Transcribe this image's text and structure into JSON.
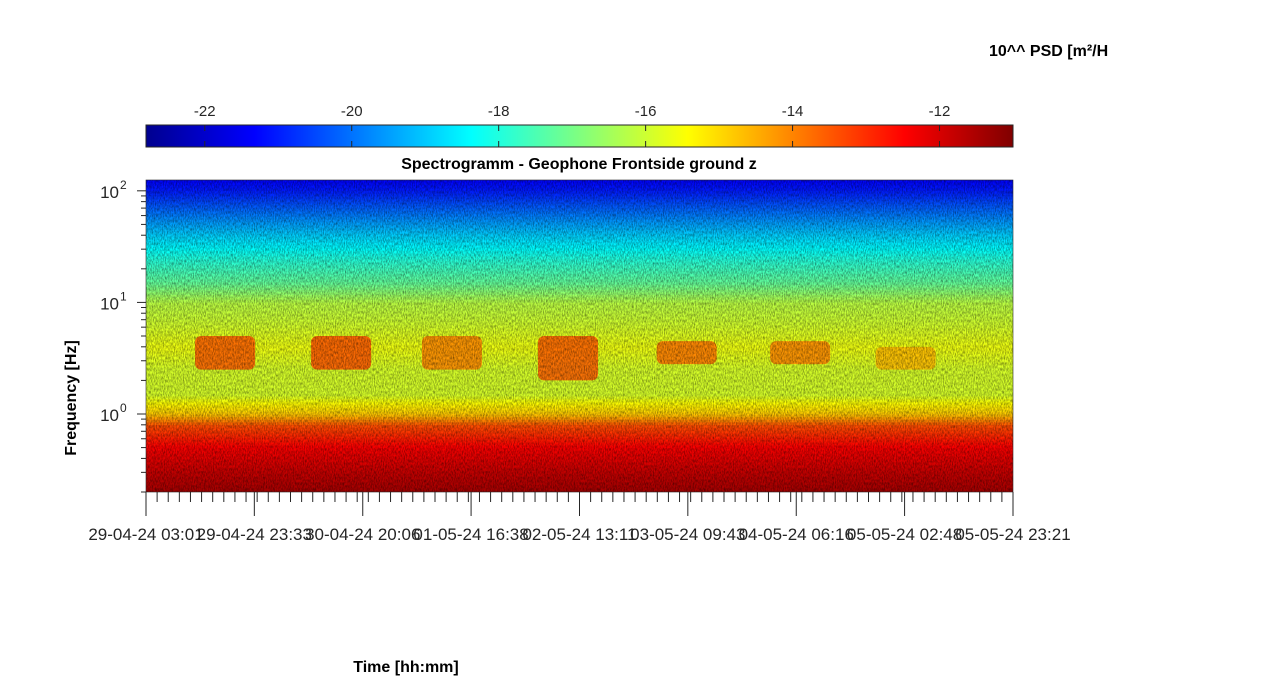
{
  "chart_data": {
    "type": "heatmap",
    "title": "Spectrogramm - Geophone Frontside ground z",
    "xlabel": "Time [hh:mm]",
    "ylabel": "Frequency [Hz]",
    "colorbar": {
      "label": "10^^ PSD [m²/H",
      "range": [
        -22.8,
        -11.0
      ],
      "ticks": [
        -22,
        -20,
        -18,
        -16,
        -14,
        -12
      ],
      "tick_labels": [
        "-22",
        "-20",
        "-18",
        "-16",
        "-14",
        "-12"
      ],
      "colormap": "jet",
      "location": "top"
    },
    "x_range": [
      "29-04-24 03:01",
      "05-05-24 23:21"
    ],
    "x_ticks": [
      "29-04-24 03:01",
      "29-04-24 23:33",
      "30-04-24 20:06",
      "01-05-24 16:38",
      "02-05-24 13:11",
      "03-05-24 09:43",
      "04-05-24 06:16",
      "05-05-24 02:48",
      "05-05-24 23:21"
    ],
    "y_scale": "log",
    "y_range_hz": [
      0.2,
      125
    ],
    "y_ticks": [
      {
        "base": "10",
        "exp": "0"
      },
      {
        "base": "10",
        "exp": "1"
      },
      {
        "base": "10",
        "exp": "2"
      }
    ],
    "y_tick_values": [
      1,
      10,
      100
    ],
    "psd_profile": {
      "frequency_hz": [
        0.2,
        0.3,
        0.5,
        0.8,
        1.0,
        1.5,
        2.5,
        4,
        7,
        10,
        15,
        25,
        40,
        70,
        100,
        125
      ],
      "log10_psd": [
        -11.4,
        -11.8,
        -12.4,
        -13.4,
        -14.8,
        -15.9,
        -15.9,
        -15.6,
        -16.0,
        -16.2,
        -17.2,
        -18.0,
        -18.9,
        -20.2,
        -21.0,
        -21.3
      ]
    },
    "time_events": [
      {
        "time": "29-04-24 18:00",
        "frequency_hz": [
          2.5,
          5.0
        ],
        "log10_psd": -13.5
      },
      {
        "time": "30-04-24 16:00",
        "frequency_hz": [
          2.5,
          5.0
        ],
        "log10_psd": -13.4
      },
      {
        "time": "01-05-24 13:00",
        "frequency_hz": [
          2.5,
          5.0
        ],
        "log10_psd": -14.0
      },
      {
        "time": "02-05-24 11:00",
        "frequency_hz": [
          2.0,
          5.0
        ],
        "log10_psd": -13.5
      },
      {
        "time": "03-05-24 09:30",
        "frequency_hz": [
          2.8,
          4.5
        ],
        "log10_psd": -13.8
      },
      {
        "time": "04-05-24 07:00",
        "frequency_hz": [
          2.8,
          4.5
        ],
        "log10_psd": -14.0
      },
      {
        "time": "05-05-24 03:00",
        "frequency_hz": [
          2.5,
          4.0
        ],
        "log10_psd": -14.6
      }
    ],
    "grid": false
  }
}
